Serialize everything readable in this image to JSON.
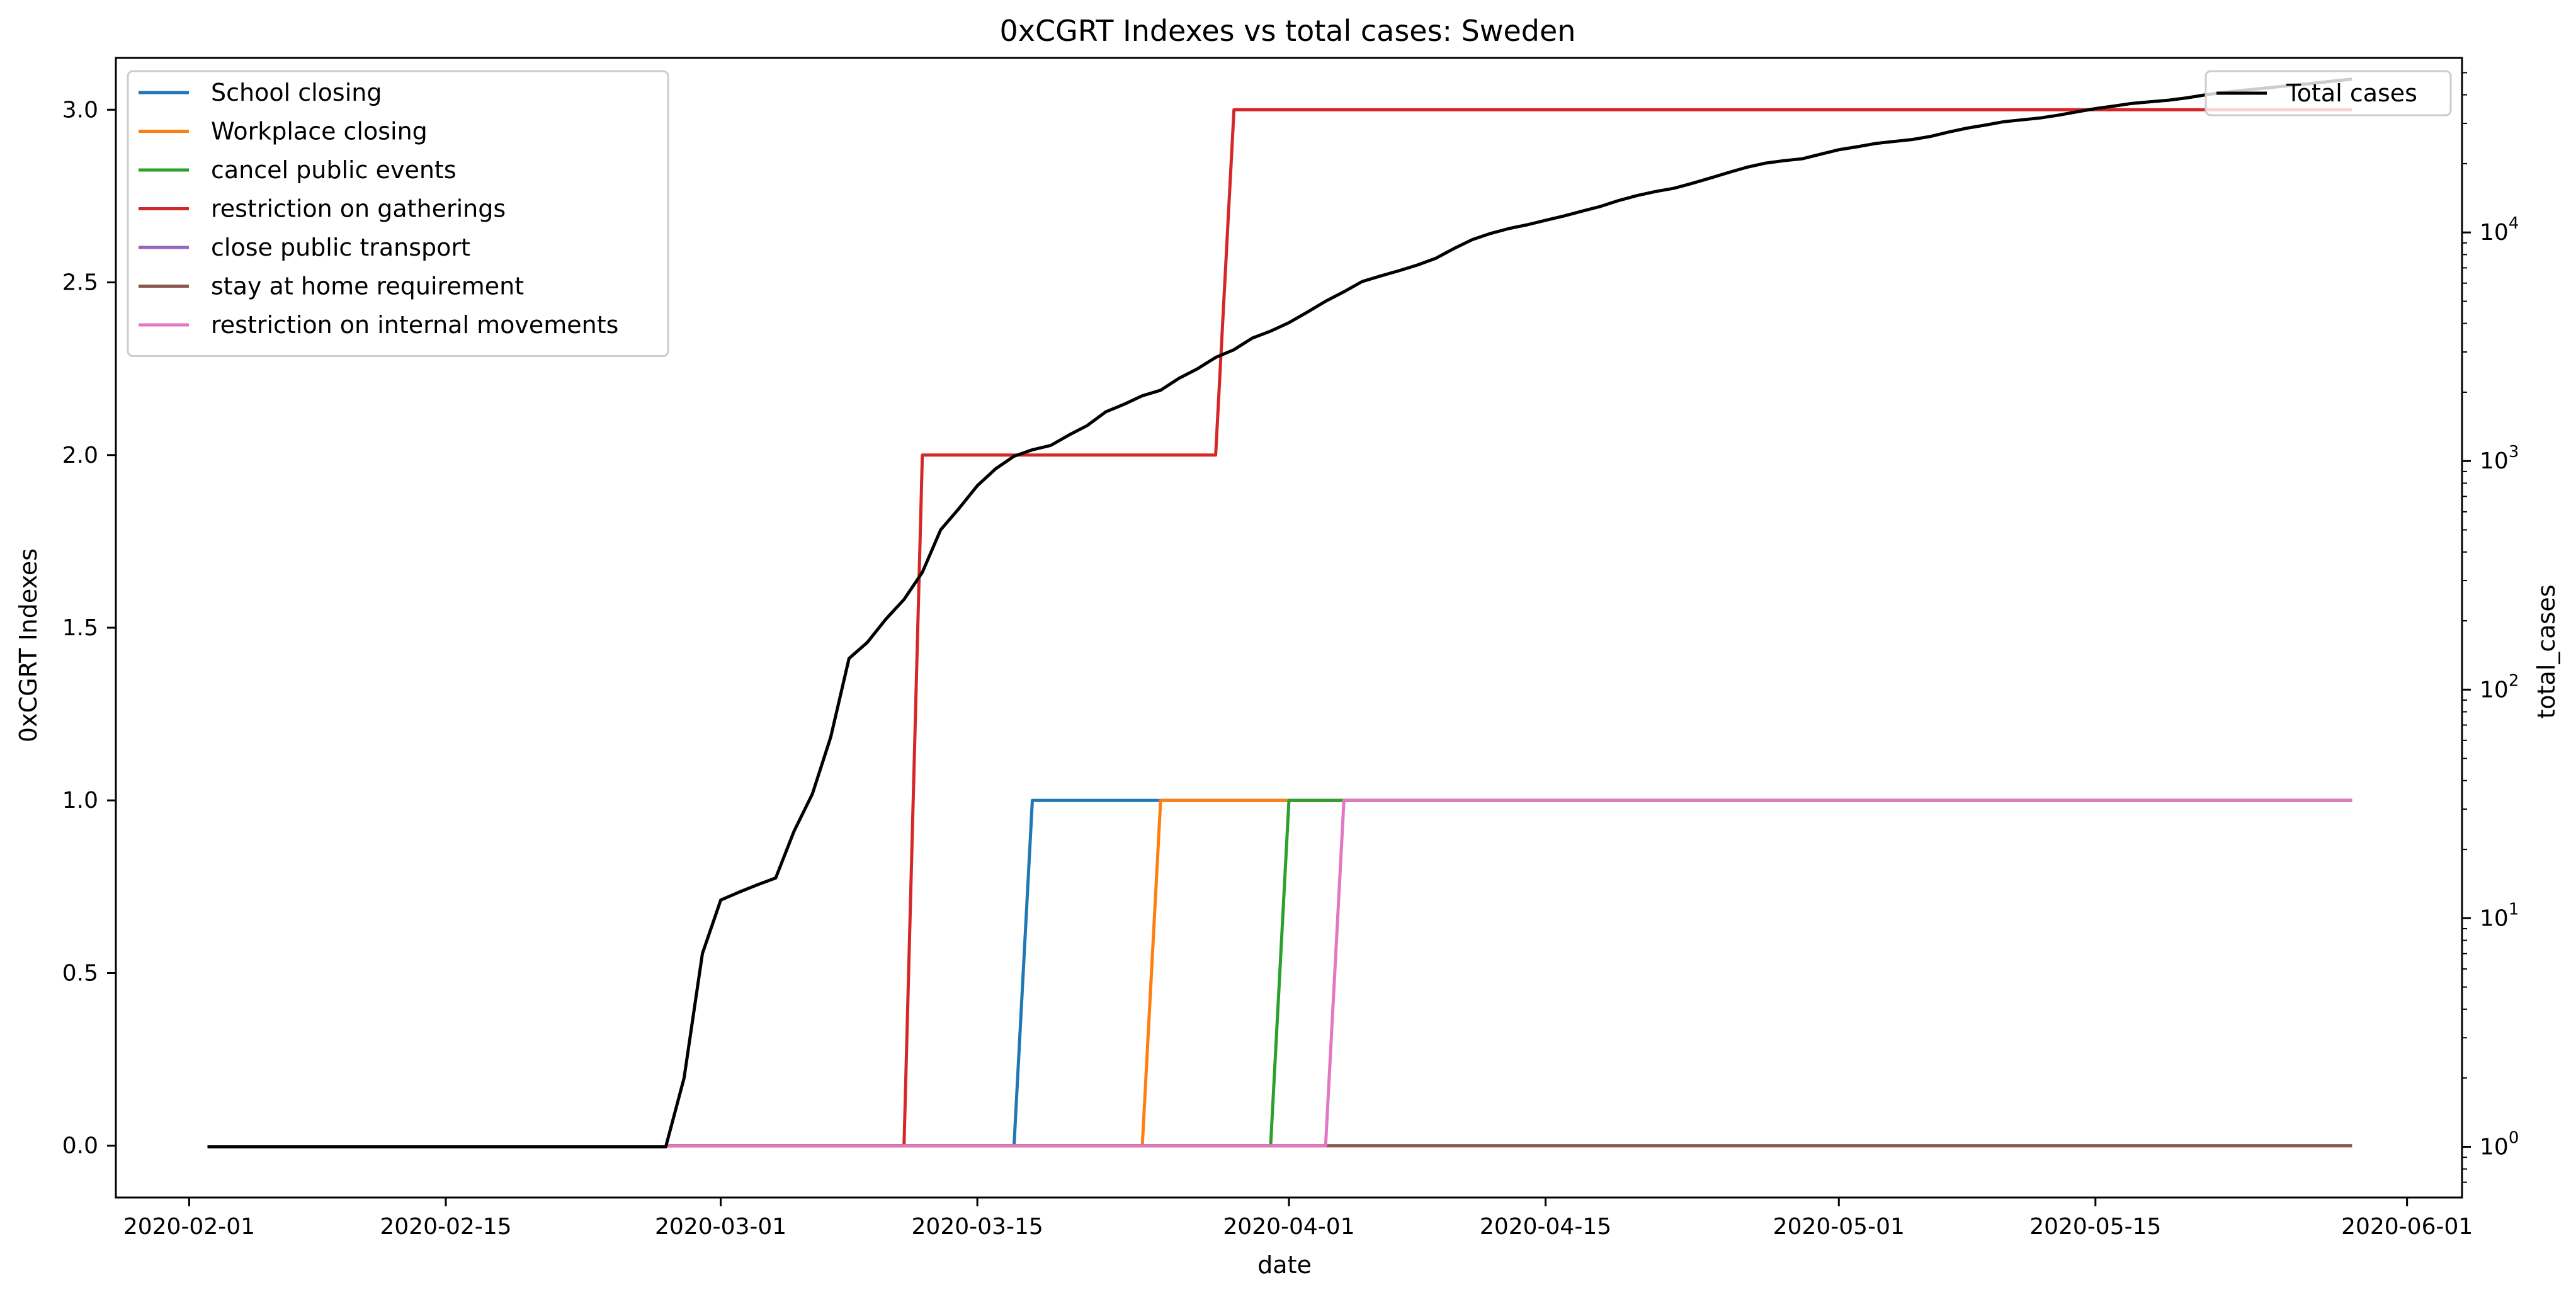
{
  "chart_data": {
    "type": "line",
    "title": "0xCGRT Indexes vs total cases:  Sweden",
    "xlabel": "date",
    "ylabel_left": "0xCGRT Indexes",
    "ylabel_right": "total_cases",
    "x_ticks": [
      "2020-02-01",
      "2020-02-15",
      "2020-03-01",
      "2020-03-15",
      "2020-04-01",
      "2020-04-15",
      "2020-05-01",
      "2020-05-15",
      "2020-06-01"
    ],
    "y_left_ticks": [
      "0.0",
      "0.5",
      "1.0",
      "1.5",
      "2.0",
      "2.5",
      "3.0"
    ],
    "y_right_ticks": [
      {
        "base": "10",
        "exp": "0",
        "value": 1
      },
      {
        "base": "10",
        "exp": "1",
        "value": 10
      },
      {
        "base": "10",
        "exp": "2",
        "value": 100
      },
      {
        "base": "10",
        "exp": "3",
        "value": 1000
      },
      {
        "base": "10",
        "exp": "4",
        "value": 10000
      }
    ],
    "x_range": [
      "2020-01-28",
      "2020-06-04"
    ],
    "y_left_range": [
      -0.15,
      3.15
    ],
    "y_right_scale": "log",
    "y_right_range": [
      0.6,
      58000
    ],
    "legend_left_position": "upper-left",
    "legend_right_position": "upper-right",
    "grid": false,
    "series": [
      {
        "name": "School closing",
        "axis": "left",
        "color": "#1f77b4",
        "points": [
          [
            "2020-02-27",
            0
          ],
          [
            "2020-03-17",
            0
          ],
          [
            "2020-03-18",
            1
          ],
          [
            "2020-05-29",
            1
          ]
        ]
      },
      {
        "name": "Workplace closing",
        "axis": "left",
        "color": "#ff7f0e",
        "points": [
          [
            "2020-02-27",
            0
          ],
          [
            "2020-03-24",
            0
          ],
          [
            "2020-03-25",
            1
          ],
          [
            "2020-05-29",
            1
          ]
        ]
      },
      {
        "name": "cancel public events",
        "axis": "left",
        "color": "#2ca02c",
        "points": [
          [
            "2020-02-27",
            0
          ],
          [
            "2020-03-31",
            0
          ],
          [
            "2020-04-01",
            1
          ],
          [
            "2020-05-29",
            1
          ]
        ]
      },
      {
        "name": "restriction on gatherings",
        "axis": "left",
        "color": "#d62728",
        "points": [
          [
            "2020-02-27",
            0
          ],
          [
            "2020-03-11",
            0
          ],
          [
            "2020-03-12",
            2
          ],
          [
            "2020-03-28",
            2
          ],
          [
            "2020-03-29",
            3
          ],
          [
            "2020-05-29",
            3
          ]
        ]
      },
      {
        "name": "close public transport",
        "axis": "left",
        "color": "#9467bd",
        "points": [
          [
            "2020-02-27",
            0
          ],
          [
            "2020-05-29",
            0
          ]
        ]
      },
      {
        "name": "stay at home requirement",
        "axis": "left",
        "color": "#8c564b",
        "points": [
          [
            "2020-02-27",
            0
          ],
          [
            "2020-05-29",
            0
          ]
        ]
      },
      {
        "name": "restriction on internal movements",
        "axis": "left",
        "color": "#e377c2",
        "points": [
          [
            "2020-02-27",
            0
          ],
          [
            "2020-04-03",
            0
          ],
          [
            "2020-04-04",
            1
          ],
          [
            "2020-05-29",
            1
          ]
        ]
      },
      {
        "name": "Total cases",
        "axis": "right",
        "color": "#000000",
        "points": [
          [
            "2020-02-02",
            1
          ],
          [
            "2020-02-27",
            1
          ],
          [
            "2020-02-28",
            2
          ],
          [
            "2020-02-29",
            7
          ],
          [
            "2020-03-01",
            12
          ],
          [
            "2020-03-02",
            13
          ],
          [
            "2020-03-03",
            14
          ],
          [
            "2020-03-04",
            15
          ],
          [
            "2020-03-05",
            24
          ],
          [
            "2020-03-06",
            35
          ],
          [
            "2020-03-07",
            62
          ],
          [
            "2020-03-08",
            137
          ],
          [
            "2020-03-09",
            161
          ],
          [
            "2020-03-10",
            203
          ],
          [
            "2020-03-11",
            248
          ],
          [
            "2020-03-12",
            326
          ],
          [
            "2020-03-13",
            500
          ],
          [
            "2020-03-14",
            620
          ],
          [
            "2020-03-15",
            780
          ],
          [
            "2020-03-16",
            925
          ],
          [
            "2020-03-17",
            1050
          ],
          [
            "2020-03-18",
            1120
          ],
          [
            "2020-03-19",
            1170
          ],
          [
            "2020-03-20",
            1300
          ],
          [
            "2020-03-21",
            1430
          ],
          [
            "2020-03-22",
            1640
          ],
          [
            "2020-03-23",
            1770
          ],
          [
            "2020-03-24",
            1930
          ],
          [
            "2020-03-25",
            2040
          ],
          [
            "2020-03-26",
            2300
          ],
          [
            "2020-03-27",
            2530
          ],
          [
            "2020-03-28",
            2840
          ],
          [
            "2020-03-29",
            3070
          ],
          [
            "2020-03-30",
            3450
          ],
          [
            "2020-03-31",
            3700
          ],
          [
            "2020-04-01",
            4030
          ],
          [
            "2020-04-02",
            4480
          ],
          [
            "2020-04-03",
            5000
          ],
          [
            "2020-04-04",
            5500
          ],
          [
            "2020-04-05",
            6100
          ],
          [
            "2020-04-06",
            6450
          ],
          [
            "2020-04-07",
            6800
          ],
          [
            "2020-04-08",
            7200
          ],
          [
            "2020-04-09",
            7700
          ],
          [
            "2020-04-10",
            8500
          ],
          [
            "2020-04-11",
            9300
          ],
          [
            "2020-04-12",
            9900
          ],
          [
            "2020-04-13",
            10400
          ],
          [
            "2020-04-14",
            10800
          ],
          [
            "2020-04-15",
            11300
          ],
          [
            "2020-04-16",
            11800
          ],
          [
            "2020-04-17",
            12400
          ],
          [
            "2020-04-18",
            13000
          ],
          [
            "2020-04-19",
            13800
          ],
          [
            "2020-04-20",
            14500
          ],
          [
            "2020-04-21",
            15100
          ],
          [
            "2020-04-22",
            15600
          ],
          [
            "2020-04-23",
            16400
          ],
          [
            "2020-04-24",
            17300
          ],
          [
            "2020-04-25",
            18300
          ],
          [
            "2020-04-26",
            19300
          ],
          [
            "2020-04-27",
            20100
          ],
          [
            "2020-04-28",
            20600
          ],
          [
            "2020-04-29",
            21000
          ],
          [
            "2020-04-30",
            22000
          ],
          [
            "2020-05-01",
            23000
          ],
          [
            "2020-05-02",
            23700
          ],
          [
            "2020-05-03",
            24500
          ],
          [
            "2020-05-04",
            25000
          ],
          [
            "2020-05-05",
            25500
          ],
          [
            "2020-05-06",
            26300
          ],
          [
            "2020-05-07",
            27500
          ],
          [
            "2020-05-08",
            28600
          ],
          [
            "2020-05-09",
            29500
          ],
          [
            "2020-05-10",
            30500
          ],
          [
            "2020-05-11",
            31100
          ],
          [
            "2020-05-12",
            31700
          ],
          [
            "2020-05-13",
            32600
          ],
          [
            "2020-05-14",
            33700
          ],
          [
            "2020-05-15",
            34800
          ],
          [
            "2020-05-16",
            35700
          ],
          [
            "2020-05-17",
            36700
          ],
          [
            "2020-05-18",
            37300
          ],
          [
            "2020-05-19",
            37900
          ],
          [
            "2020-05-20",
            38800
          ],
          [
            "2020-05-21",
            40000
          ],
          [
            "2020-05-22",
            41000
          ],
          [
            "2020-05-23",
            41800
          ],
          [
            "2020-05-24",
            42600
          ],
          [
            "2020-05-25",
            43400
          ],
          [
            "2020-05-26",
            44200
          ],
          [
            "2020-05-27",
            45000
          ],
          [
            "2020-05-28",
            46000
          ],
          [
            "2020-05-29",
            46800
          ]
        ]
      }
    ]
  }
}
